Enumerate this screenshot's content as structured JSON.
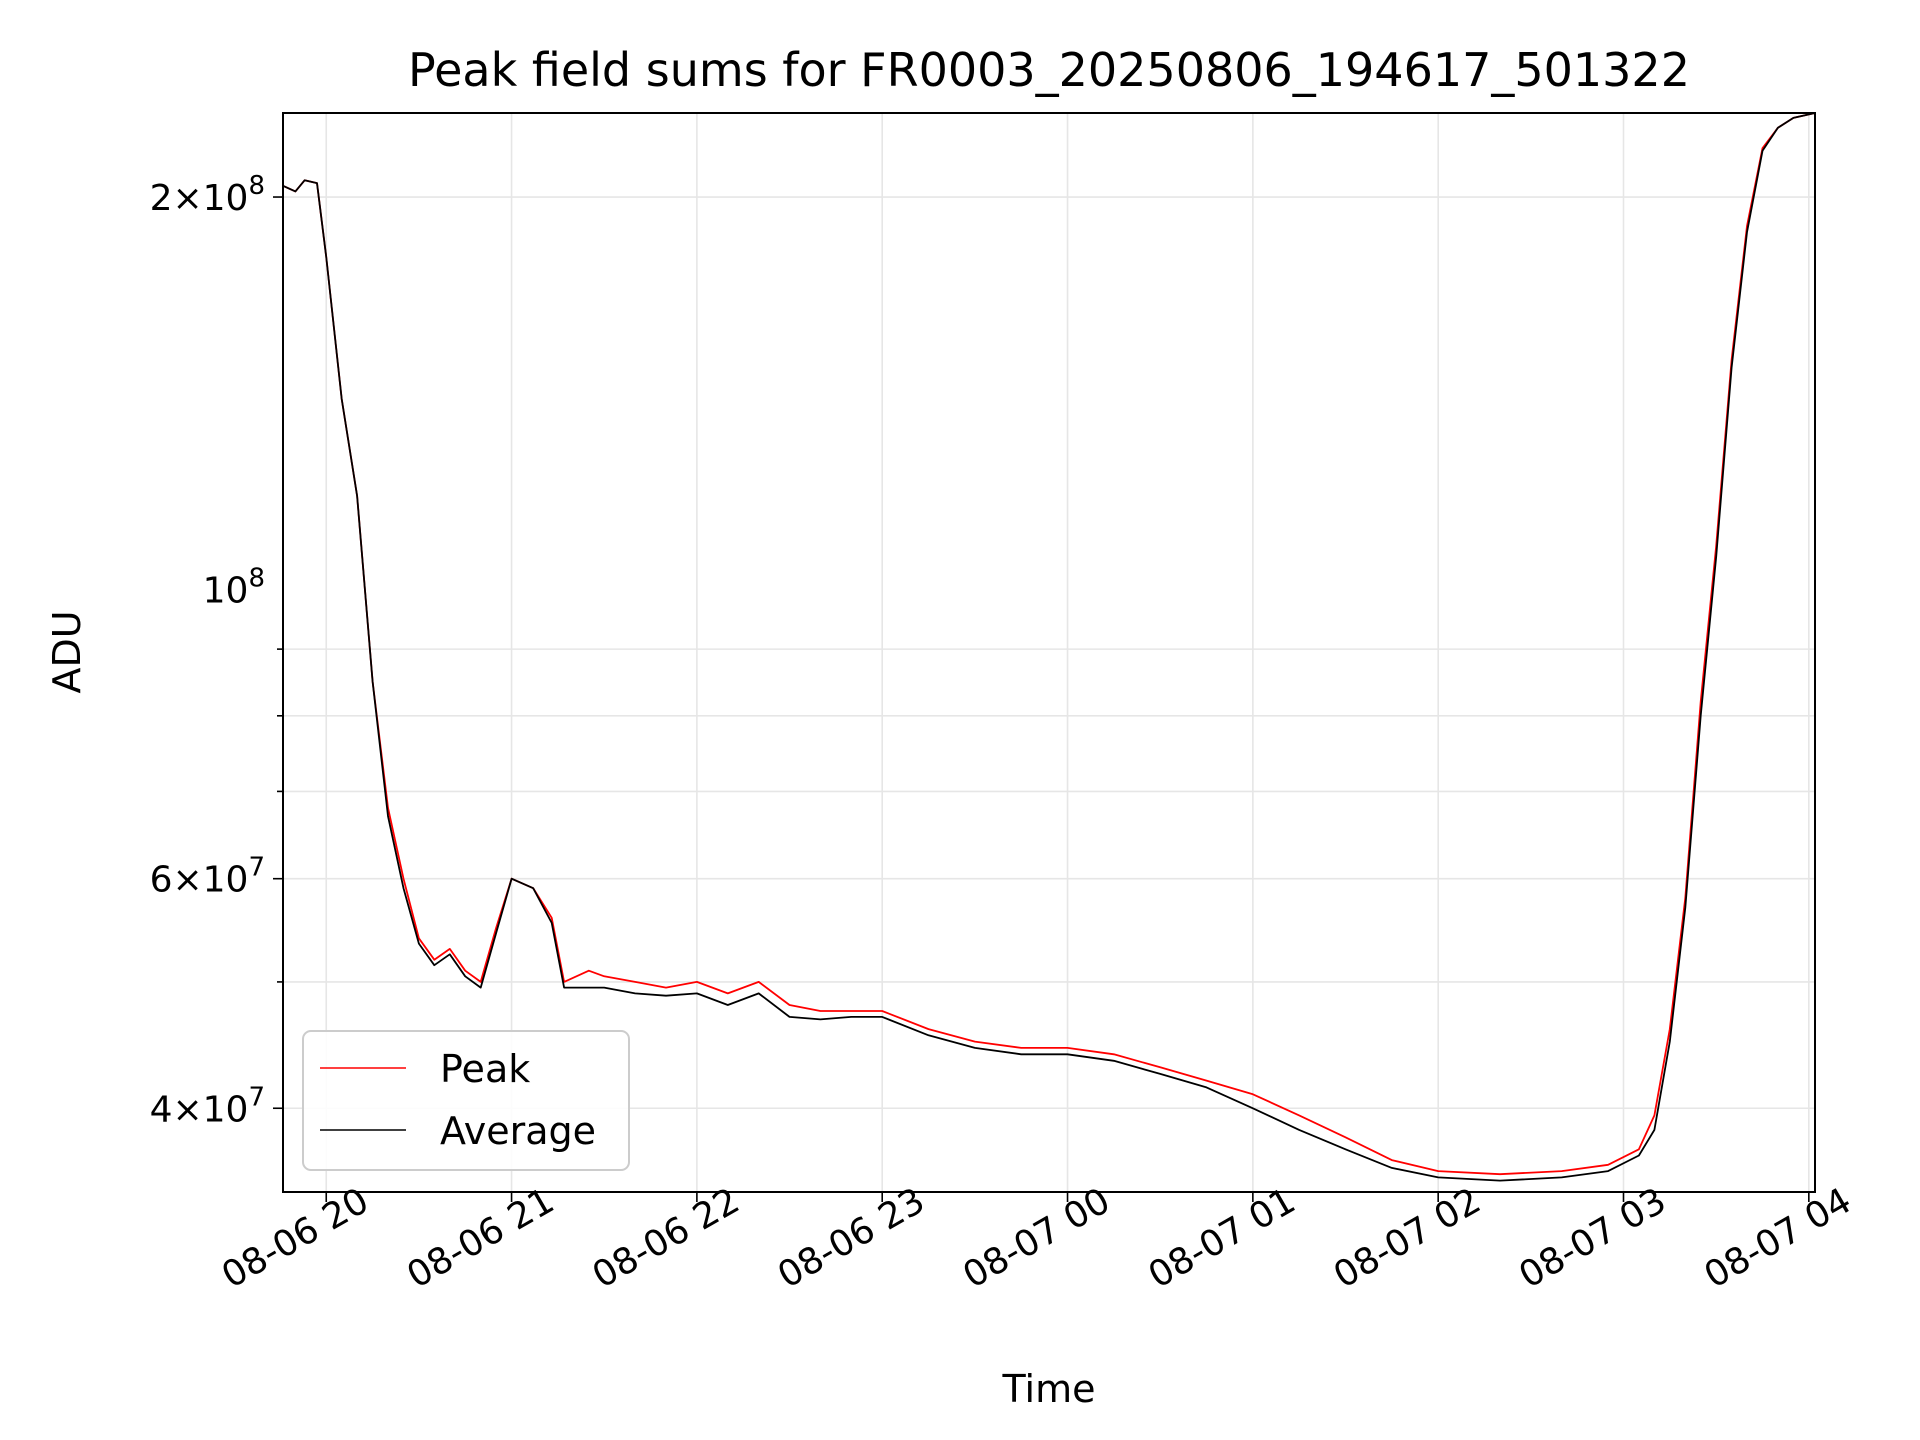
{
  "chart_data": {
    "type": "line",
    "title": "Peak field sums for FR0003_20250806_194617_501322",
    "xlabel": "Time",
    "ylabel": "ADU",
    "yscale": "log",
    "xlim": [
      "2025-08-06 19:46",
      "2025-08-07 04:02"
    ],
    "ylim": [
      34500000,
      232000000
    ],
    "grid": true,
    "legend_position": "lower-left",
    "x_ticks": [
      "08-06 20",
      "08-06 21",
      "08-06 22",
      "08-06 23",
      "08-07 00",
      "08-07 01",
      "08-07 02",
      "08-07 03",
      "08-07 04"
    ],
    "x_tick_values": [
      "2025-08-06 20:00",
      "2025-08-06 21:00",
      "2025-08-06 22:00",
      "2025-08-06 23:00",
      "2025-08-07 00:00",
      "2025-08-07 01:00",
      "2025-08-07 02:00",
      "2025-08-07 03:00",
      "2025-08-07 04:00"
    ],
    "y_ticks": [
      {
        "value": 40000000,
        "mantissa": "4",
        "exponent": "7"
      },
      {
        "value": 60000000,
        "mantissa": "6",
        "exponent": "7"
      },
      {
        "value": 100000000,
        "mantissa": "",
        "exponent": "8"
      },
      {
        "value": 200000000,
        "mantissa": "2",
        "exponent": "8"
      }
    ],
    "series": [
      {
        "name": "Peak",
        "color": "#ff0000",
        "x": [
          "2025-08-06 19:46",
          "2025-08-06 19:50",
          "2025-08-06 19:53",
          "2025-08-06 19:57",
          "2025-08-06 20:00",
          "2025-08-06 20:05",
          "2025-08-06 20:10",
          "2025-08-06 20:15",
          "2025-08-06 20:20",
          "2025-08-06 20:25",
          "2025-08-06 20:30",
          "2025-08-06 20:35",
          "2025-08-06 20:40",
          "2025-08-06 20:45",
          "2025-08-06 20:50",
          "2025-08-06 20:55",
          "2025-08-06 21:00",
          "2025-08-06 21:07",
          "2025-08-06 21:13",
          "2025-08-06 21:17",
          "2025-08-06 21:25",
          "2025-08-06 21:30",
          "2025-08-06 21:40",
          "2025-08-06 21:50",
          "2025-08-06 22:00",
          "2025-08-06 22:10",
          "2025-08-06 22:20",
          "2025-08-06 22:30",
          "2025-08-06 22:40",
          "2025-08-06 22:50",
          "2025-08-06 23:00",
          "2025-08-06 23:15",
          "2025-08-06 23:30",
          "2025-08-06 23:45",
          "2025-08-07 00:00",
          "2025-08-07 00:15",
          "2025-08-07 00:30",
          "2025-08-07 00:45",
          "2025-08-07 01:00",
          "2025-08-07 01:15",
          "2025-08-07 01:30",
          "2025-08-07 01:45",
          "2025-08-07 02:00",
          "2025-08-07 02:20",
          "2025-08-07 02:40",
          "2025-08-07 02:55",
          "2025-08-07 03:05",
          "2025-08-07 03:10",
          "2025-08-07 03:15",
          "2025-08-07 03:20",
          "2025-08-07 03:25",
          "2025-08-07 03:30",
          "2025-08-07 03:35",
          "2025-08-07 03:40",
          "2025-08-07 03:45",
          "2025-08-07 03:50",
          "2025-08-07 03:55",
          "2025-08-07 04:02"
        ],
        "y": [
          204000000,
          202000000,
          206000000,
          205000000,
          180000000,
          140000000,
          118000000,
          85000000,
          68000000,
          60000000,
          54000000,
          52000000,
          53000000,
          51000000,
          50000000,
          55000000,
          60000000,
          59000000,
          56000000,
          50000000,
          51000000,
          50500000,
          50000000,
          49500000,
          50000000,
          49000000,
          50000000,
          48000000,
          47500000,
          47500000,
          47500000,
          46000000,
          45000000,
          44500000,
          44500000,
          44000000,
          43000000,
          42000000,
          41000000,
          39500000,
          38000000,
          36500000,
          35800000,
          35600000,
          35800000,
          36200000,
          37200000,
          39500000,
          46000000,
          58000000,
          82000000,
          108000000,
          150000000,
          190000000,
          218000000,
          226000000,
          230000000,
          232000000
        ]
      },
      {
        "name": "Average",
        "color": "#000000",
        "x": [
          "2025-08-06 19:46",
          "2025-08-06 19:50",
          "2025-08-06 19:53",
          "2025-08-06 19:57",
          "2025-08-06 20:00",
          "2025-08-06 20:05",
          "2025-08-06 20:10",
          "2025-08-06 20:15",
          "2025-08-06 20:20",
          "2025-08-06 20:25",
          "2025-08-06 20:30",
          "2025-08-06 20:35",
          "2025-08-06 20:40",
          "2025-08-06 20:45",
          "2025-08-06 20:50",
          "2025-08-06 20:55",
          "2025-08-06 21:00",
          "2025-08-06 21:07",
          "2025-08-06 21:13",
          "2025-08-06 21:17",
          "2025-08-06 21:25",
          "2025-08-06 21:30",
          "2025-08-06 21:40",
          "2025-08-06 21:50",
          "2025-08-06 22:00",
          "2025-08-06 22:10",
          "2025-08-06 22:20",
          "2025-08-06 22:30",
          "2025-08-06 22:40",
          "2025-08-06 22:50",
          "2025-08-06 23:00",
          "2025-08-06 23:15",
          "2025-08-06 23:30",
          "2025-08-06 23:45",
          "2025-08-07 00:00",
          "2025-08-07 00:15",
          "2025-08-07 00:30",
          "2025-08-07 00:45",
          "2025-08-07 01:00",
          "2025-08-07 01:15",
          "2025-08-07 01:30",
          "2025-08-07 01:45",
          "2025-08-07 02:00",
          "2025-08-07 02:20",
          "2025-08-07 02:40",
          "2025-08-07 02:55",
          "2025-08-07 03:05",
          "2025-08-07 03:10",
          "2025-08-07 03:15",
          "2025-08-07 03:20",
          "2025-08-07 03:25",
          "2025-08-07 03:30",
          "2025-08-07 03:35",
          "2025-08-07 03:40",
          "2025-08-07 03:45",
          "2025-08-07 03:50",
          "2025-08-07 03:55",
          "2025-08-07 04:02"
        ],
        "y": [
          204000000,
          202000000,
          206000000,
          205000000,
          180000000,
          140000000,
          118000000,
          85000000,
          67000000,
          59000000,
          53500000,
          51500000,
          52500000,
          50500000,
          49500000,
          54500000,
          60000000,
          59000000,
          55500000,
          49500000,
          49500000,
          49500000,
          49000000,
          48800000,
          49000000,
          48000000,
          49000000,
          47000000,
          46800000,
          47000000,
          47000000,
          45500000,
          44500000,
          44000000,
          44000000,
          43500000,
          42500000,
          41500000,
          40000000,
          38500000,
          37200000,
          36000000,
          35400000,
          35200000,
          35400000,
          35800000,
          36800000,
          38500000,
          45000000,
          57000000,
          80000000,
          106000000,
          148000000,
          188000000,
          217000000,
          226000000,
          230000000,
          232000000
        ]
      }
    ]
  }
}
